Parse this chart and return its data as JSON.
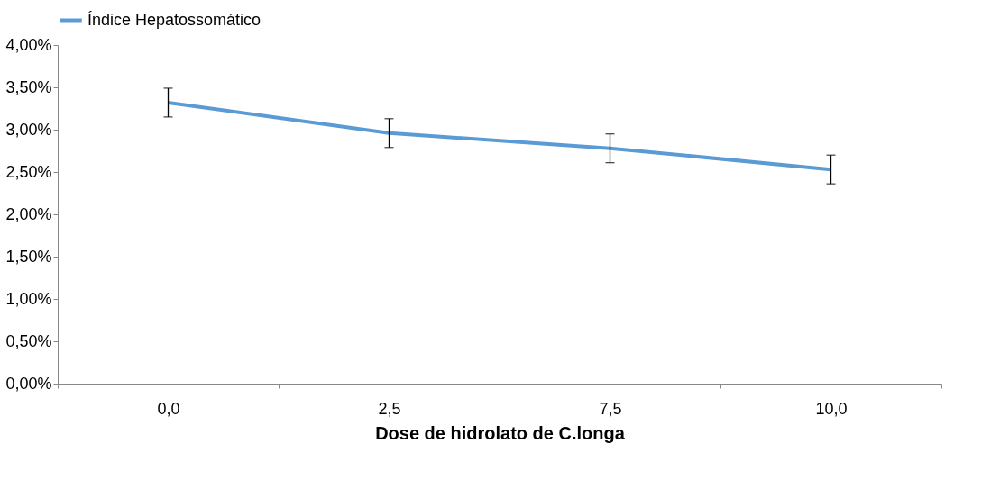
{
  "chart_data": {
    "type": "line",
    "xlabel": "Dose de hidrolato de C.longa",
    "categories": [
      "0,0",
      "2,5",
      "7,5",
      "10,0"
    ],
    "series": [
      {
        "name": "Índice Hepatossomático",
        "color": "#5b9bd5",
        "values": [
          3.32,
          2.96,
          2.78,
          2.53
        ],
        "errors": [
          0.17,
          0.17,
          0.17,
          0.17
        ]
      }
    ],
    "ylim": [
      0,
      4
    ],
    "yticks": [
      {
        "value": 0,
        "label": "0,00%"
      },
      {
        "value": 0.5,
        "label": "0,50%"
      },
      {
        "value": 1,
        "label": "1,00%"
      },
      {
        "value": 1.5,
        "label": "1,50%"
      },
      {
        "value": 2,
        "label": "2,00%"
      },
      {
        "value": 2.5,
        "label": "2,50%"
      },
      {
        "value": 3,
        "label": "3,00%"
      },
      {
        "value": 3.5,
        "label": "3,50%"
      },
      {
        "value": 4,
        "label": "4,00%"
      }
    ],
    "grid": false,
    "legend": "top",
    "marker": "none",
    "line_style": "solid"
  }
}
